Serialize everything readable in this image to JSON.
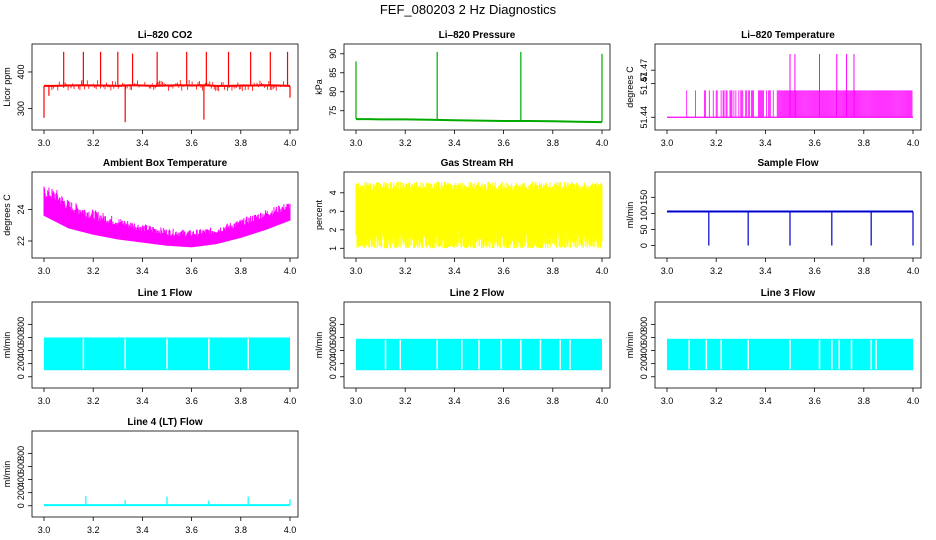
{
  "page": {
    "title": "FEF_080203  2 Hz Diagnostics"
  },
  "chart_data": [
    {
      "id": "co2",
      "type": "line",
      "title": "Li–820 CO2",
      "ylabel": "Licor ppm",
      "color": "#ff0000",
      "xlim": [
        3.0,
        4.0
      ],
      "ylim": [
        258,
        460
      ],
      "yticks": [
        300,
        400
      ],
      "xticks": [
        "3.0",
        "3.2",
        "3.4",
        "3.6",
        "3.8",
        "4.0"
      ],
      "x": [
        3.0,
        3.04,
        3.1,
        3.16,
        3.2,
        3.25,
        3.3,
        3.35,
        3.4,
        3.45,
        3.5,
        3.55,
        3.6,
        3.65,
        3.7,
        3.75,
        3.8,
        3.85,
        3.9,
        3.95,
        4.0
      ],
      "y": [
        362,
        362,
        363,
        364,
        363,
        363,
        362,
        364,
        363,
        362,
        363,
        364,
        363,
        364,
        362,
        362,
        363,
        363,
        364,
        363,
        362
      ],
      "spikes": [
        {
          "x": 3.0,
          "y": 275
        },
        {
          "x": 3.02,
          "y": 335
        },
        {
          "x": 3.08,
          "y": 455
        },
        {
          "x": 3.16,
          "y": 455
        },
        {
          "x": 3.23,
          "y": 455
        },
        {
          "x": 3.3,
          "y": 455
        },
        {
          "x": 3.33,
          "y": 263
        },
        {
          "x": 3.36,
          "y": 450
        },
        {
          "x": 3.46,
          "y": 455
        },
        {
          "x": 3.58,
          "y": 455
        },
        {
          "x": 3.65,
          "y": 270
        },
        {
          "x": 3.66,
          "y": 455
        },
        {
          "x": 3.75,
          "y": 455
        },
        {
          "x": 3.84,
          "y": 455
        },
        {
          "x": 3.92,
          "y": 455
        },
        {
          "x": 3.99,
          "y": 455
        },
        {
          "x": 4.0,
          "y": 330
        }
      ]
    },
    {
      "id": "pressure",
      "type": "line",
      "title": "Li–820 Pressure",
      "ylabel": "kPa",
      "color": "#00aa00",
      "xlim": [
        3.0,
        4.0
      ],
      "ylim": [
        71.5,
        91
      ],
      "yticks": [
        75,
        80,
        85,
        90
      ],
      "xticks": [
        "3.0",
        "3.2",
        "3.4",
        "3.6",
        "3.8",
        "4.0"
      ],
      "x": [
        3.0,
        3.05,
        3.1,
        3.2,
        3.3,
        3.4,
        3.5,
        3.6,
        3.7,
        3.8,
        3.9,
        4.0
      ],
      "y": [
        72.8,
        72.8,
        72.7,
        72.7,
        72.6,
        72.5,
        72.4,
        72.3,
        72.3,
        72.2,
        72.1,
        72.0
      ],
      "spikes": [
        {
          "x": 3.0,
          "y": 88
        },
        {
          "x": 3.33,
          "y": 90.5
        },
        {
          "x": 3.67,
          "y": 90.5
        },
        {
          "x": 4.0,
          "y": 90
        }
      ]
    },
    {
      "id": "temp820",
      "type": "area",
      "title": "Li–820 Temperature",
      "ylabel": "degrees C",
      "color": "#ff00ff",
      "xlim": [
        3.0,
        4.0
      ],
      "ylim": [
        51.435,
        51.49
      ],
      "yticks": [
        51.44,
        51.47
      ],
      "ytick_labels": [
        "51.44",
        "51.47",
        "51.47"
      ],
      "ytick_positions": [
        51.44,
        51.465,
        51.475
      ],
      "xticks": [
        "3.0",
        "3.2",
        "3.4",
        "3.6",
        "3.8",
        "4.0"
      ],
      "baseline": 51.44,
      "band_top": 51.46,
      "spike_top": 51.487,
      "band_ranges": [
        [
          3.08,
          3.46
        ],
        [
          3.46,
          3.55
        ],
        [
          3.55,
          4.0
        ]
      ],
      "spikes_x": [
        3.5,
        3.52,
        3.62,
        3.69,
        3.73,
        3.76
      ]
    },
    {
      "id": "boxtemp",
      "type": "area",
      "title": "Ambient Box Temperature",
      "ylabel": "degrees C",
      "color": "#ff00ff",
      "xlim": [
        3.0,
        4.0
      ],
      "ylim": [
        21.3,
        26
      ],
      "yticks": [
        22,
        24
      ],
      "xticks": [
        "3.0",
        "3.2",
        "3.4",
        "3.6",
        "3.8",
        "4.0"
      ],
      "x": [
        3.0,
        3.05,
        3.1,
        3.2,
        3.3,
        3.4,
        3.5,
        3.6,
        3.7,
        3.8,
        3.9,
        4.0
      ],
      "upper": [
        25.5,
        25.3,
        24.6,
        24.0,
        23.5,
        23.1,
        22.8,
        22.7,
        22.9,
        23.4,
        24.0,
        24.5
      ],
      "lower": [
        23.6,
        23.2,
        22.8,
        22.4,
        22.1,
        21.9,
        21.7,
        21.6,
        21.8,
        22.2,
        22.7,
        23.3
      ]
    },
    {
      "id": "rh",
      "type": "area",
      "title": "Gas Stream RH",
      "ylabel": "percent",
      "color": "#ffff00",
      "xlim": [
        3.0,
        4.0
      ],
      "ylim": [
        0.8,
        4.8
      ],
      "yticks": [
        1,
        2,
        3,
        4
      ],
      "xticks": [
        "3.0",
        "3.2",
        "3.4",
        "3.6",
        "3.8",
        "4.0"
      ],
      "upper": 4.6,
      "lower": 1.0
    },
    {
      "id": "sampleflow",
      "type": "line",
      "title": "Sample Flow",
      "ylabel": "ml/min",
      "color": "#0000cc",
      "xlim": [
        3.0,
        4.0
      ],
      "ylim": [
        -20,
        210
      ],
      "yticks": [
        0,
        50,
        100,
        150
      ],
      "xticks": [
        "3.0",
        "3.2",
        "3.4",
        "3.6",
        "3.8",
        "4.0"
      ],
      "x": [
        3.0,
        4.0
      ],
      "y": [
        106,
        106
      ],
      "spikes": [
        {
          "x": 3.17,
          "y": 0
        },
        {
          "x": 3.33,
          "y": 0
        },
        {
          "x": 3.5,
          "y": 0
        },
        {
          "x": 3.67,
          "y": 0
        },
        {
          "x": 3.83,
          "y": 0
        },
        {
          "x": 4.0,
          "y": 0
        }
      ]
    },
    {
      "id": "line1",
      "type": "area",
      "title": "Line 1 Flow",
      "ylabel": "ml/min",
      "color": "#00ffff",
      "xlim": [
        3.0,
        4.0
      ],
      "ylim": [
        -80,
        1050
      ],
      "yticks": [
        0,
        200,
        400,
        600,
        800
      ],
      "xticks": [
        "3.0",
        "3.2",
        "3.4",
        "3.6",
        "3.8",
        "4.0"
      ],
      "upper": 600,
      "lower": 100,
      "gaps": [
        3.16,
        3.33,
        3.5,
        3.67,
        3.83
      ]
    },
    {
      "id": "line2",
      "type": "area",
      "title": "Line 2 Flow",
      "ylabel": "ml/min",
      "color": "#00ffff",
      "xlim": [
        3.0,
        4.0
      ],
      "ylim": [
        -80,
        1050
      ],
      "yticks": [
        0,
        200,
        400,
        600,
        800
      ],
      "xticks": [
        "3.0",
        "3.2",
        "3.4",
        "3.6",
        "3.8",
        "4.0"
      ],
      "upper": 580,
      "lower": 100,
      "gaps": [
        3.12,
        3.18,
        3.33,
        3.43,
        3.5,
        3.59,
        3.67,
        3.75,
        3.83,
        3.87
      ]
    },
    {
      "id": "line3",
      "type": "area",
      "title": "Line 3 Flow",
      "ylabel": "ml/min",
      "color": "#00ffff",
      "xlim": [
        3.0,
        4.0
      ],
      "ylim": [
        -80,
        1050
      ],
      "yticks": [
        0,
        200,
        400,
        600,
        800
      ],
      "xticks": [
        "3.0",
        "3.2",
        "3.4",
        "3.6",
        "3.8",
        "4.0"
      ],
      "upper": 580,
      "lower": 100,
      "gaps": [
        3.09,
        3.16,
        3.22,
        3.33,
        3.5,
        3.62,
        3.67,
        3.7,
        3.75,
        3.83,
        3.85
      ]
    },
    {
      "id": "line4",
      "type": "line",
      "title": "Line 4 (LT) Flow",
      "ylabel": "ml/min",
      "color": "#00ffff",
      "xlim": [
        3.0,
        4.0
      ],
      "ylim": [
        -80,
        1050
      ],
      "yticks": [
        0,
        200,
        400,
        600,
        800
      ],
      "xticks": [
        "3.0",
        "3.2",
        "3.4",
        "3.6",
        "3.8",
        "4.0"
      ],
      "x": [
        3.0,
        4.0
      ],
      "y": [
        10,
        10
      ],
      "spikes": [
        {
          "x": 3.17,
          "y": 150
        },
        {
          "x": 3.33,
          "y": 90
        },
        {
          "x": 3.5,
          "y": 140
        },
        {
          "x": 3.67,
          "y": 80
        },
        {
          "x": 3.83,
          "y": 140
        },
        {
          "x": 4.0,
          "y": 100
        }
      ]
    }
  ]
}
